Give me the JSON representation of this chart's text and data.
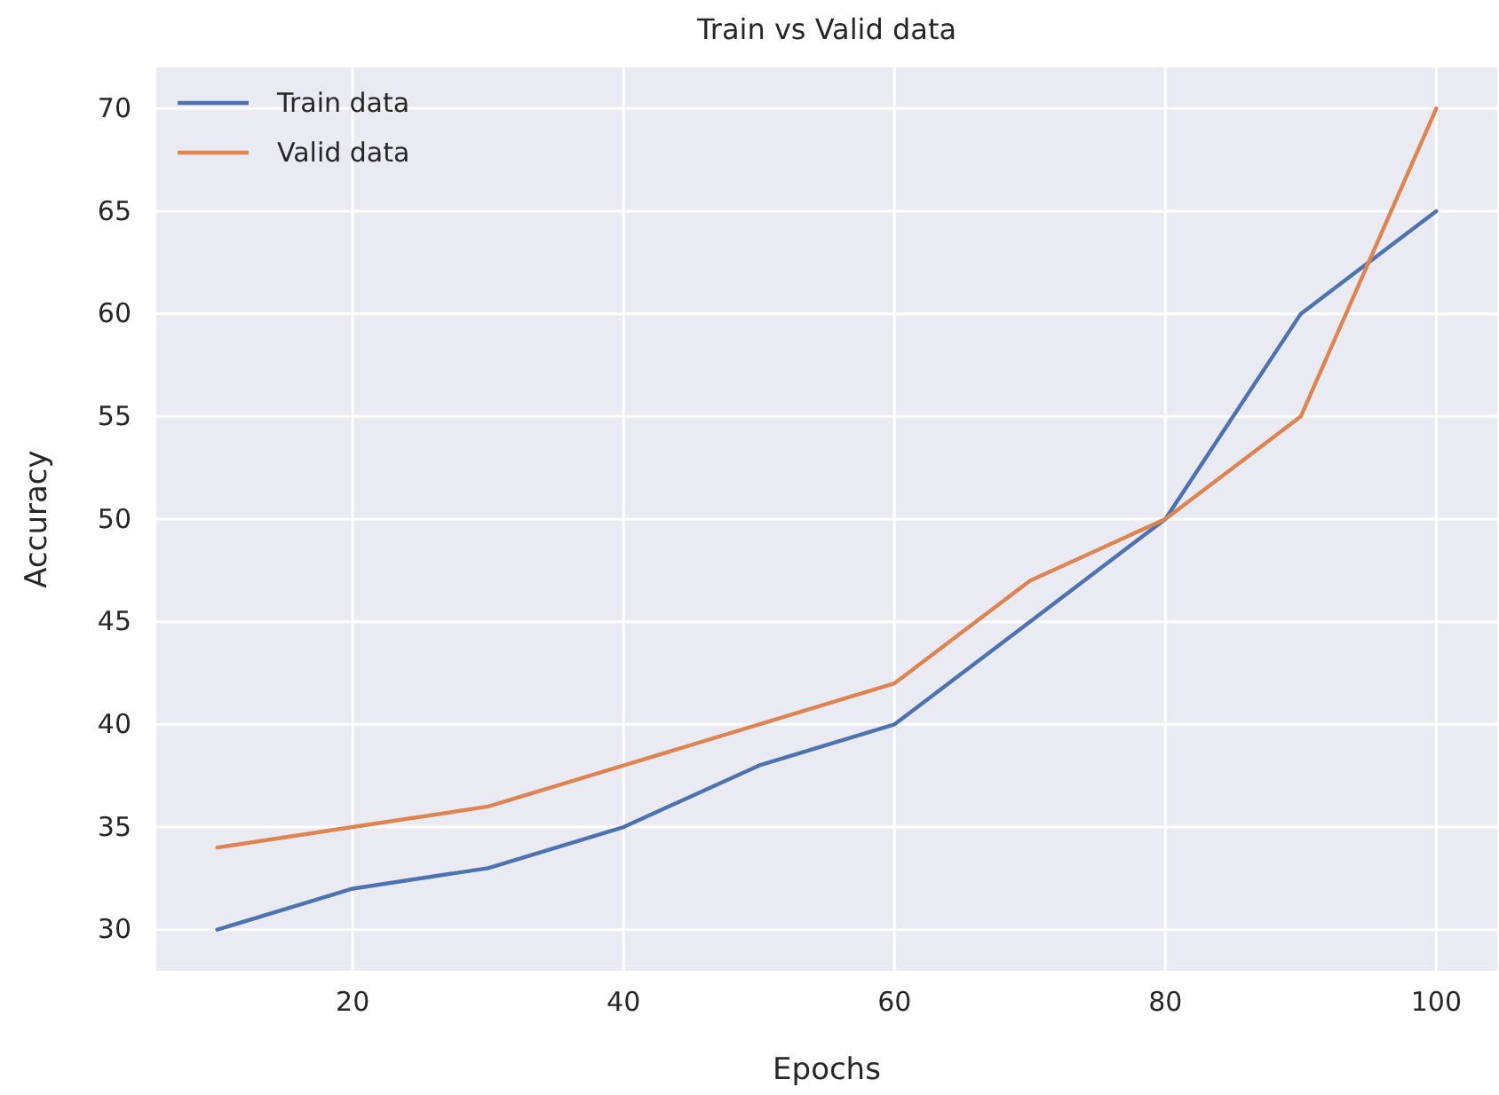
{
  "chart_data": {
    "type": "line",
    "title": "Train vs Valid data",
    "xlabel": "Epochs",
    "ylabel": "Accuracy",
    "x": [
      10,
      20,
      30,
      40,
      50,
      60,
      70,
      80,
      90,
      100
    ],
    "series": [
      {
        "name": "Train data",
        "color": "#4c72b0",
        "values": [
          30,
          32,
          33,
          35,
          38,
          40,
          45,
          50,
          60,
          65
        ]
      },
      {
        "name": "Valid data",
        "color": "#dd8452",
        "values": [
          34,
          35,
          36,
          38,
          40,
          42,
          47,
          50,
          55,
          70
        ]
      }
    ],
    "xlim": [
      5.5,
      104.5
    ],
    "xticks": [
      20,
      40,
      60,
      80,
      100
    ],
    "ylim": [
      28,
      72
    ],
    "yticks": [
      30,
      35,
      40,
      45,
      50,
      55,
      60,
      65,
      70
    ],
    "grid": true,
    "legend": "top left",
    "marker": "none",
    "line_style": "solid"
  }
}
